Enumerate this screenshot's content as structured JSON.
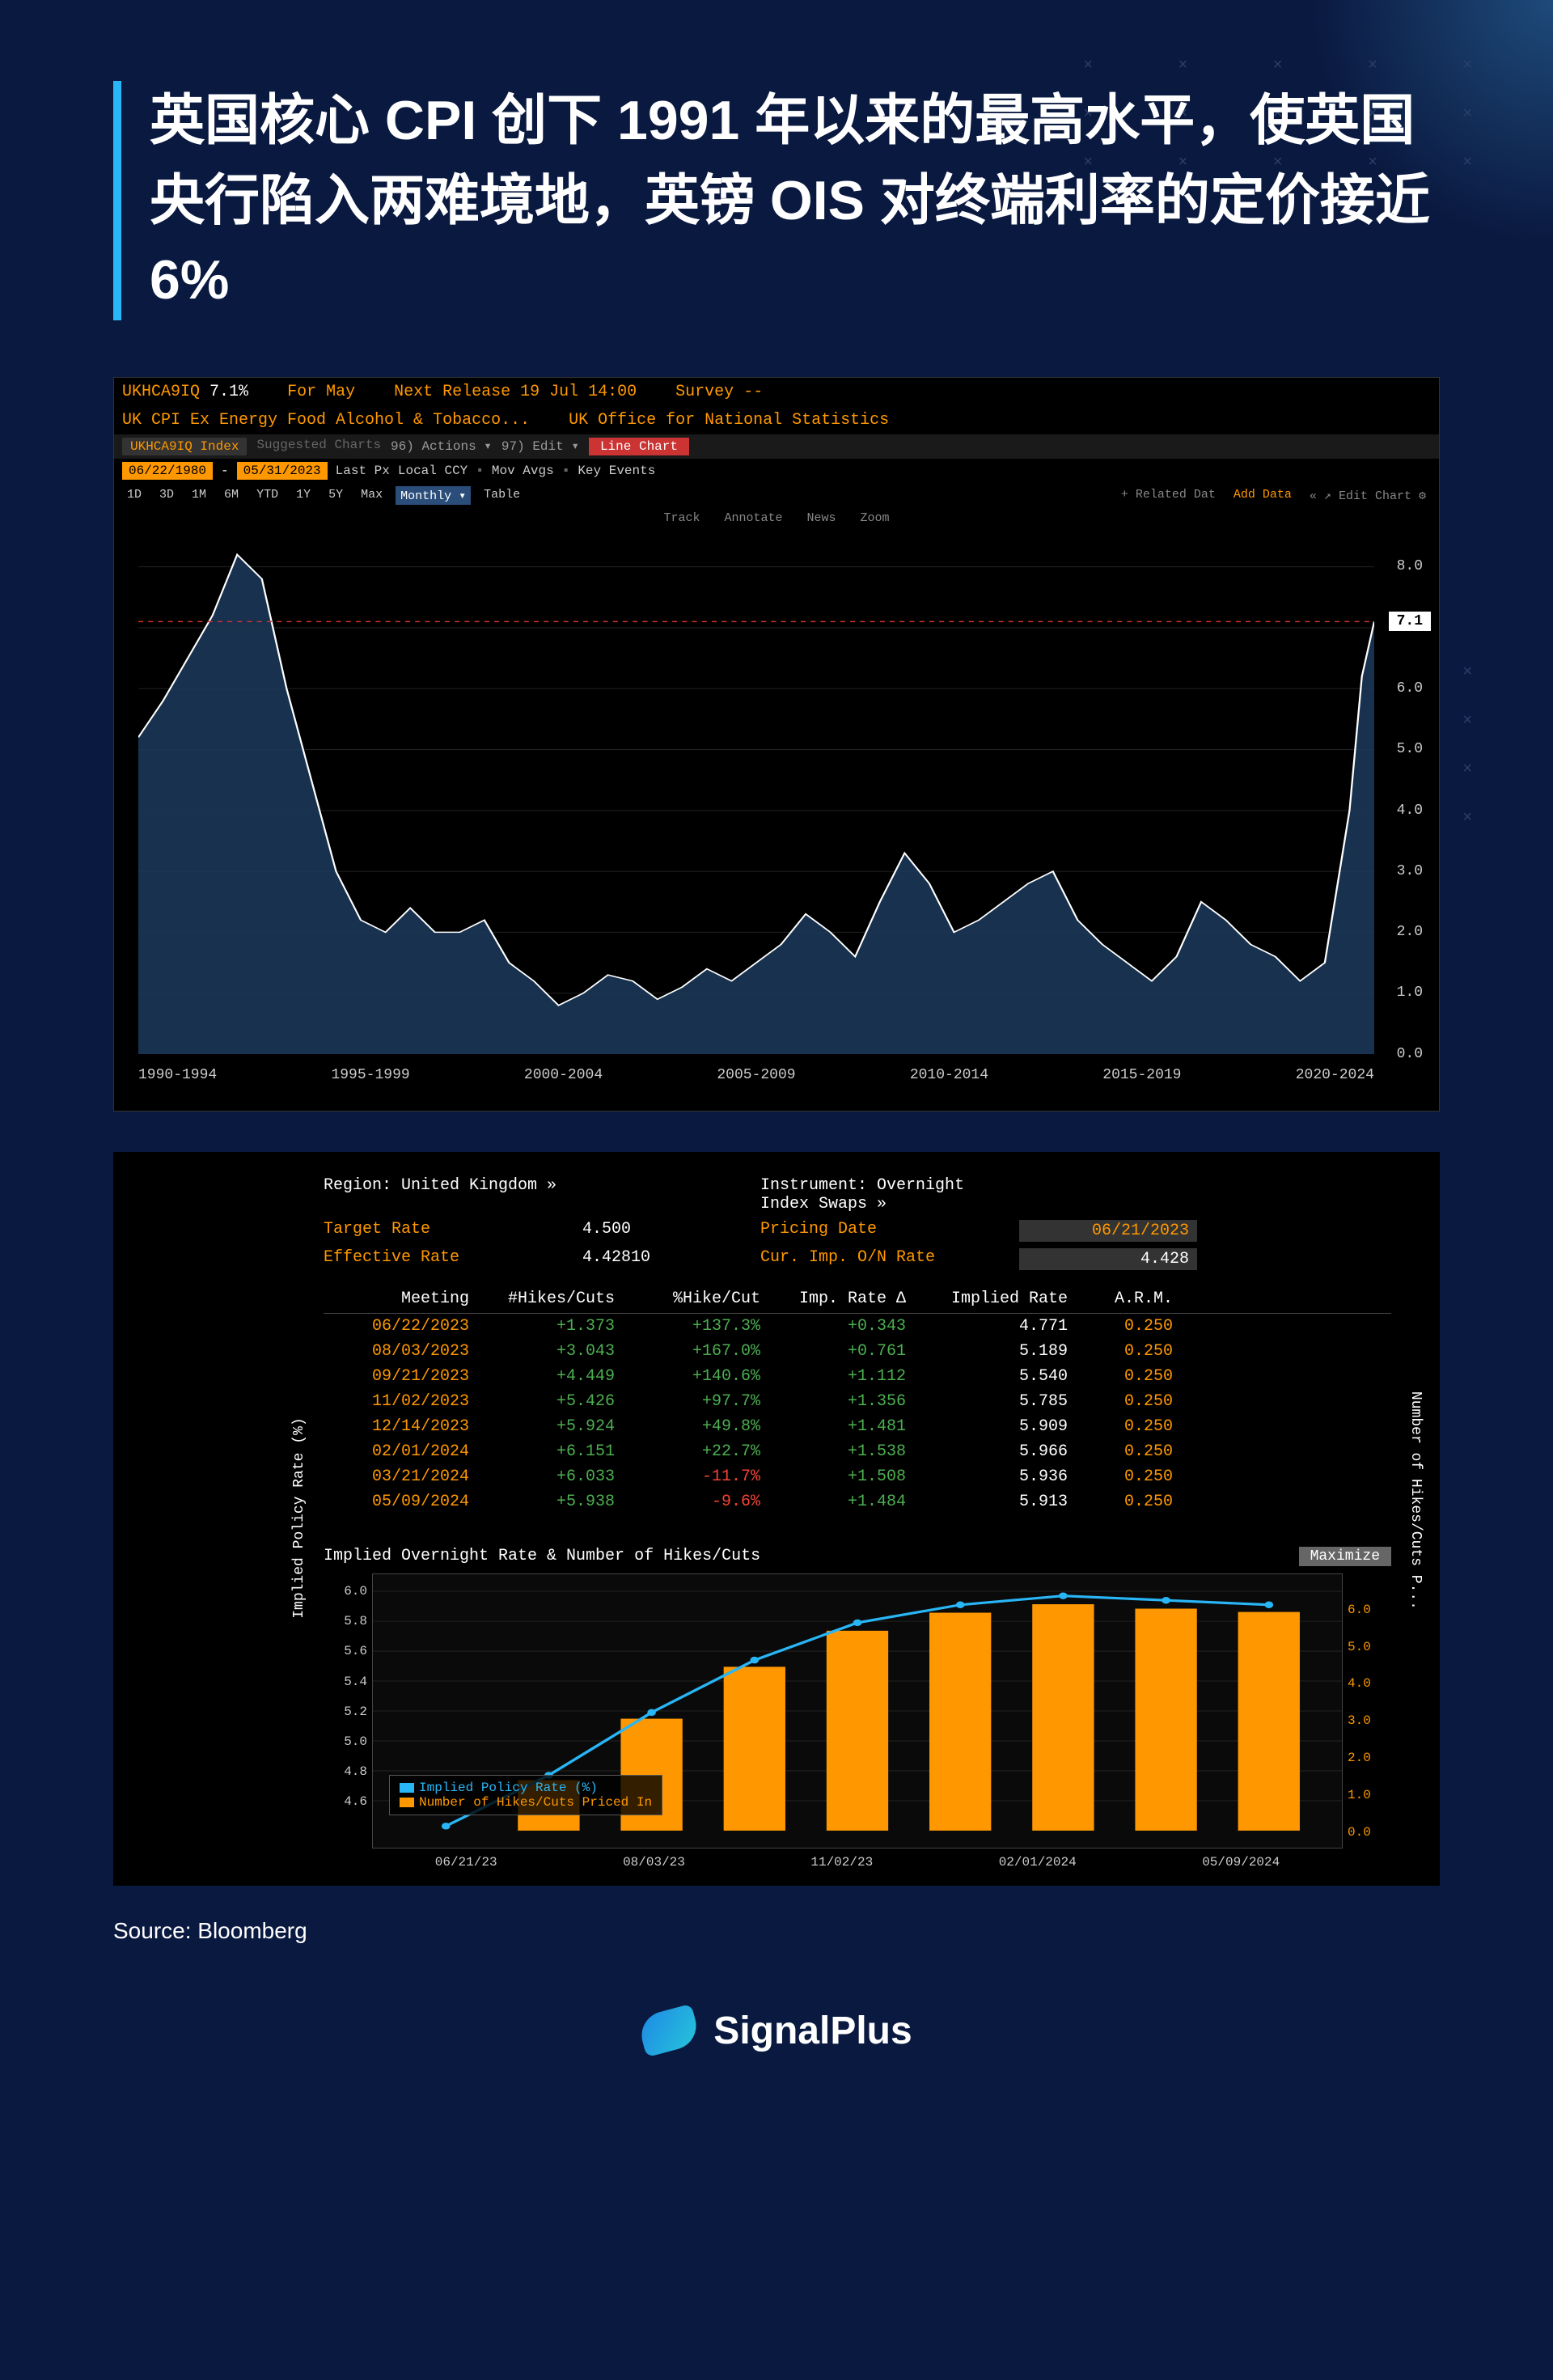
{
  "title": "英国核心 CPI 创下 1991 年以来的最高水平，使英国央行陷入两难境地，英镑 OIS 对终端利率的定价接近 6%",
  "source": "Source: Bloomberg",
  "brand": "SignalPlus",
  "chart1": {
    "ticker": "UKHCA9IQ",
    "value": "7.1%",
    "period_label": "For May",
    "next_release": "Next Release 19 Jul 14:00",
    "survey": "Survey --",
    "subtitle_left": "UK CPI Ex Energy Food Alcohol & Tobacco...",
    "subtitle_right": "UK Office for National Statistics",
    "index_label": "UKHCA9IQ Index",
    "actions": "Actions",
    "edit": "Edit",
    "line_chart": "Line Chart",
    "date_from": "06/22/1980",
    "date_to": "05/31/2023",
    "last_px": "Last Px",
    "local_ccy": "Local CCY",
    "mov_avgs": "Mov Avgs",
    "key_events": "Key Events",
    "periods": [
      "1D",
      "3D",
      "1M",
      "6M",
      "YTD",
      "1Y",
      "5Y",
      "Max",
      "Monthly ▾",
      "Table"
    ],
    "tools": [
      "Track",
      "Annotate",
      "News",
      "Zoom"
    ],
    "right_tools": [
      "+ Related Dat",
      "Add Data",
      "« ↗ Edit Chart ⚙"
    ],
    "y_ticks": [
      0.0,
      1.0,
      2.0,
      3.0,
      4.0,
      5.0,
      6.0,
      7.0,
      8.0
    ],
    "ylim": [
      0,
      8.5
    ],
    "current": 7.1,
    "x_labels": [
      "1990-1994",
      "1995-1999",
      "2000-2004",
      "2005-2009",
      "2010-2014",
      "2015-2019",
      "2020-2024"
    ],
    "line_color": "#ffffff",
    "fill_color": "#1b3a5c",
    "dash_color": "#cc3333",
    "bg_color": "#000000",
    "series": [
      [
        0,
        5.2
      ],
      [
        2,
        5.8
      ],
      [
        4,
        6.5
      ],
      [
        6,
        7.2
      ],
      [
        8,
        8.2
      ],
      [
        10,
        7.8
      ],
      [
        12,
        6.0
      ],
      [
        14,
        4.5
      ],
      [
        16,
        3.0
      ],
      [
        18,
        2.2
      ],
      [
        20,
        2.0
      ],
      [
        22,
        2.4
      ],
      [
        24,
        2.0
      ],
      [
        26,
        2.0
      ],
      [
        28,
        2.2
      ],
      [
        30,
        1.5
      ],
      [
        32,
        1.2
      ],
      [
        34,
        0.8
      ],
      [
        36,
        1.0
      ],
      [
        38,
        1.3
      ],
      [
        40,
        1.2
      ],
      [
        42,
        0.9
      ],
      [
        44,
        1.1
      ],
      [
        46,
        1.4
      ],
      [
        48,
        1.2
      ],
      [
        50,
        1.5
      ],
      [
        52,
        1.8
      ],
      [
        54,
        2.3
      ],
      [
        56,
        2.0
      ],
      [
        58,
        1.6
      ],
      [
        60,
        2.5
      ],
      [
        62,
        3.3
      ],
      [
        64,
        2.8
      ],
      [
        66,
        2.0
      ],
      [
        68,
        2.2
      ],
      [
        70,
        2.5
      ],
      [
        72,
        2.8
      ],
      [
        74,
        3.0
      ],
      [
        76,
        2.2
      ],
      [
        78,
        1.8
      ],
      [
        80,
        1.5
      ],
      [
        82,
        1.2
      ],
      [
        84,
        1.6
      ],
      [
        86,
        2.5
      ],
      [
        88,
        2.2
      ],
      [
        90,
        1.8
      ],
      [
        92,
        1.6
      ],
      [
        94,
        1.2
      ],
      [
        96,
        1.5
      ],
      [
        98,
        4.0
      ],
      [
        99,
        6.2
      ],
      [
        100,
        7.1
      ]
    ]
  },
  "panel2": {
    "region_label": "Region:",
    "region": "United Kingdom »",
    "target_label": "Target Rate",
    "target": "4.500",
    "eff_label": "Effective Rate",
    "eff": "4.42810",
    "instr_label": "Instrument:",
    "instr": "Overnight Index Swaps »",
    "pricing_label": "Pricing Date",
    "pricing": "06/21/2023",
    "cur_label": "Cur. Imp. O/N Rate",
    "cur": "4.428",
    "columns": [
      "Meeting",
      "#Hikes/Cuts",
      "%Hike/Cut",
      "Imp. Rate Δ",
      "Implied Rate",
      "A.R.M."
    ],
    "rows": [
      {
        "date": "06/22/2023",
        "hikes": "+1.373",
        "pct": "+137.3%",
        "delta": "+0.343",
        "implied": "4.771",
        "arm": "0.250",
        "pct_sign": "green"
      },
      {
        "date": "08/03/2023",
        "hikes": "+3.043",
        "pct": "+167.0%",
        "delta": "+0.761",
        "implied": "5.189",
        "arm": "0.250",
        "pct_sign": "green"
      },
      {
        "date": "09/21/2023",
        "hikes": "+4.449",
        "pct": "+140.6%",
        "delta": "+1.112",
        "implied": "5.540",
        "arm": "0.250",
        "pct_sign": "green"
      },
      {
        "date": "11/02/2023",
        "hikes": "+5.426",
        "pct": "+97.7%",
        "delta": "+1.356",
        "implied": "5.785",
        "arm": "0.250",
        "pct_sign": "green"
      },
      {
        "date": "12/14/2023",
        "hikes": "+5.924",
        "pct": "+49.8%",
        "delta": "+1.481",
        "implied": "5.909",
        "arm": "0.250",
        "pct_sign": "green"
      },
      {
        "date": "02/01/2024",
        "hikes": "+6.151",
        "pct": "+22.7%",
        "delta": "+1.538",
        "implied": "5.966",
        "arm": "0.250",
        "pct_sign": "green"
      },
      {
        "date": "03/21/2024",
        "hikes": "+6.033",
        "pct": "-11.7%",
        "delta": "+1.508",
        "implied": "5.936",
        "arm": "0.250",
        "pct_sign": "red"
      },
      {
        "date": "05/09/2024",
        "hikes": "+5.938",
        "pct": "-9.6%",
        "delta": "+1.484",
        "implied": "5.913",
        "arm": "0.250",
        "pct_sign": "red"
      }
    ]
  },
  "subchart": {
    "title": "Implied Overnight Rate & Number of Hikes/Cuts",
    "maximize": "Maximize",
    "y_left_label": "Implied Policy Rate (%)",
    "y_right_label": "Number of Hikes/Cuts P...",
    "y_left_ticks": [
      4.6,
      4.8,
      5.0,
      5.2,
      5.4,
      5.6,
      5.8,
      6.0
    ],
    "y_left_lim": [
      4.4,
      6.0
    ],
    "y_right_ticks": [
      0.0,
      1.0,
      2.0,
      3.0,
      4.0,
      5.0,
      6.0
    ],
    "y_right_lim": [
      0,
      6.5
    ],
    "x_labels": [
      "06/21/23",
      "08/03/23",
      "11/02/23",
      "02/01/2024",
      "05/09/2024"
    ],
    "legend": {
      "line": "Implied Policy Rate (%)",
      "bar": "Number of Hikes/Cuts Priced In"
    },
    "line_color": "#29b6f6",
    "bar_color": "#ff9800",
    "line_data": [
      4.43,
      4.77,
      5.19,
      5.54,
      5.79,
      5.91,
      5.97,
      5.94,
      5.91
    ],
    "bar_data": [
      0,
      1.37,
      3.04,
      4.45,
      5.43,
      5.92,
      6.15,
      6.03,
      5.94
    ]
  }
}
